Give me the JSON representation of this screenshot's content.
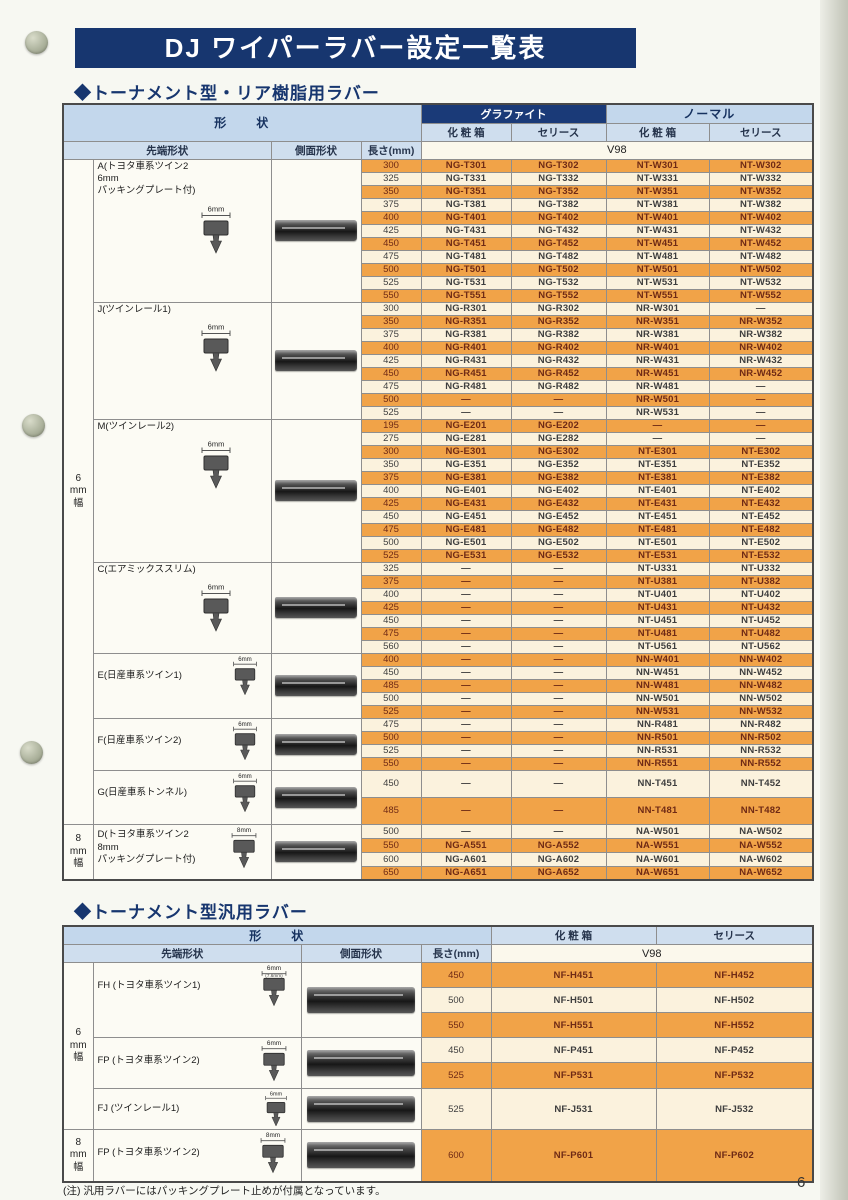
{
  "page": {
    "title": "DJ ワイパーラバー設定一覧表",
    "page_number": "6",
    "footnote": "(注) 汎用ラバーにはパッキングプレート止めが付属となっています。"
  },
  "colors": {
    "banner_navy": "#17366f",
    "header_light_blue": "#c3d7ec",
    "row_orange": "#f1a348",
    "row_cream": "#fbf2dd",
    "orange_row_text": "#6f2a15"
  },
  "table1": {
    "section_title": "◆トーナメント型・リア樹脂用ラバー",
    "headers": {
      "shape": "形　　状",
      "graphite": "グラファイト",
      "normal": "ノーマル",
      "box_g": "化 粧 箱",
      "cel_g": "セリース",
      "box_n": "化 粧 箱",
      "cel_n": "セリース",
      "tip": "先端形状",
      "side": "側面形状",
      "length": "長さ(mm)",
      "model": "V98"
    },
    "width_bands": [
      {
        "label": "6mm幅",
        "lines": [
          "6",
          "mm",
          "幅"
        ]
      },
      {
        "label": "8mm幅",
        "lines": [
          "8",
          "mm",
          "幅"
        ]
      }
    ],
    "groups": [
      {
        "id": "A",
        "band": 0,
        "tip_width": "6mm",
        "label_lines": [
          "A(トヨタ車系ツイン2",
          "6mm",
          "パッキングプレート付)"
        ],
        "rows": [
          {
            "cells": [
              "300",
              "NG-T301",
              "NG-T302",
              "NT-W301",
              "NT-W302"
            ]
          },
          {
            "cells": [
              "325",
              "NG-T331",
              "NG-T332",
              "NT-W331",
              "NT-W332"
            ]
          },
          {
            "cells": [
              "350",
              "NG-T351",
              "NG-T352",
              "NT-W351",
              "NT-W352"
            ]
          },
          {
            "cells": [
              "375",
              "NG-T381",
              "NG-T382",
              "NT-W381",
              "NT-W382"
            ]
          },
          {
            "cells": [
              "400",
              "NG-T401",
              "NG-T402",
              "NT-W401",
              "NT-W402"
            ]
          },
          {
            "cells": [
              "425",
              "NG-T431",
              "NG-T432",
              "NT-W431",
              "NT-W432"
            ]
          },
          {
            "cells": [
              "450",
              "NG-T451",
              "NG-T452",
              "NT-W451",
              "NT-W452"
            ]
          },
          {
            "cells": [
              "475",
              "NG-T481",
              "NG-T482",
              "NT-W481",
              "NT-W482"
            ]
          },
          {
            "cells": [
              "500",
              "NG-T501",
              "NG-T502",
              "NT-W501",
              "NT-W502"
            ]
          },
          {
            "cells": [
              "525",
              "NG-T531",
              "NG-T532",
              "NT-W531",
              "NT-W532"
            ]
          },
          {
            "cells": [
              "550",
              "NG-T551",
              "NG-T552",
              "NT-W551",
              "NT-W552"
            ]
          }
        ]
      },
      {
        "id": "J",
        "band": 0,
        "tip_width": "6mm",
        "label_lines": [
          "J(ツインレール1)"
        ],
        "rows": [
          {
            "cells": [
              "300",
              "NG-R301",
              "NG-R302",
              "NR-W301",
              "—"
            ]
          },
          {
            "cells": [
              "350",
              "NG-R351",
              "NG-R352",
              "NR-W351",
              "NR-W352"
            ]
          },
          {
            "cells": [
              "375",
              "NG-R381",
              "NG-R382",
              "NR-W381",
              "NR-W382"
            ]
          },
          {
            "cells": [
              "400",
              "NG-R401",
              "NG-R402",
              "NR-W401",
              "NR-W402"
            ]
          },
          {
            "cells": [
              "425",
              "NG-R431",
              "NG-R432",
              "NR-W431",
              "NR-W432"
            ]
          },
          {
            "cells": [
              "450",
              "NG-R451",
              "NG-R452",
              "NR-W451",
              "NR-W452"
            ]
          },
          {
            "cells": [
              "475",
              "NG-R481",
              "NG-R482",
              "NR-W481",
              "—"
            ]
          },
          {
            "cells": [
              "500",
              "—",
              "—",
              "NR-W501",
              "—"
            ]
          },
          {
            "cells": [
              "525",
              "—",
              "—",
              "NR-W531",
              "—"
            ]
          }
        ]
      },
      {
        "id": "M",
        "band": 0,
        "tip_width": "6mm",
        "label_lines": [
          "M(ツインレール2)"
        ],
        "rows": [
          {
            "cells": [
              "195",
              "NG-E201",
              "NG-E202",
              "—",
              "—"
            ]
          },
          {
            "cells": [
              "275",
              "NG-E281",
              "NG-E282",
              "—",
              "—"
            ]
          },
          {
            "cells": [
              "300",
              "NG-E301",
              "NG-E302",
              "NT-E301",
              "NT-E302"
            ]
          },
          {
            "cells": [
              "350",
              "NG-E351",
              "NG-E352",
              "NT-E351",
              "NT-E352"
            ]
          },
          {
            "cells": [
              "375",
              "NG-E381",
              "NG-E382",
              "NT-E381",
              "NT-E382"
            ]
          },
          {
            "cells": [
              "400",
              "NG-E401",
              "NG-E402",
              "NT-E401",
              "NT-E402"
            ]
          },
          {
            "cells": [
              "425",
              "NG-E431",
              "NG-E432",
              "NT-E431",
              "NT-E432"
            ]
          },
          {
            "cells": [
              "450",
              "NG-E451",
              "NG-E452",
              "NT-E451",
              "NT-E452"
            ]
          },
          {
            "cells": [
              "475",
              "NG-E481",
              "NG-E482",
              "NT-E481",
              "NT-E482"
            ]
          },
          {
            "cells": [
              "500",
              "NG-E501",
              "NG-E502",
              "NT-E501",
              "NT-E502"
            ]
          },
          {
            "cells": [
              "525",
              "NG-E531",
              "NG-E532",
              "NT-E531",
              "NT-E532"
            ]
          }
        ]
      },
      {
        "id": "C",
        "band": 0,
        "tip_width": "6mm",
        "label_lines": [
          "C(エアミックススリム)"
        ],
        "rows": [
          {
            "cells": [
              "325",
              "—",
              "—",
              "NT-U331",
              "NT-U332"
            ]
          },
          {
            "cells": [
              "375",
              "—",
              "—",
              "NT-U381",
              "NT-U382"
            ]
          },
          {
            "cells": [
              "400",
              "—",
              "—",
              "NT-U401",
              "NT-U402"
            ]
          },
          {
            "cells": [
              "425",
              "—",
              "—",
              "NT-U431",
              "NT-U432"
            ]
          },
          {
            "cells": [
              "450",
              "—",
              "—",
              "NT-U451",
              "NT-U452"
            ]
          },
          {
            "cells": [
              "475",
              "—",
              "—",
              "NT-U481",
              "NT-U482"
            ]
          },
          {
            "cells": [
              "560",
              "—",
              "—",
              "NT-U561",
              "NT-U562"
            ]
          }
        ]
      },
      {
        "id": "E",
        "band": 0,
        "tip_width": "6mm",
        "label_lines": [
          "E(日産車系ツイン1)"
        ],
        "rows": [
          {
            "cells": [
              "400",
              "—",
              "—",
              "NN-W401",
              "NN-W402"
            ]
          },
          {
            "cells": [
              "450",
              "—",
              "—",
              "NN-W451",
              "NN-W452"
            ]
          },
          {
            "cells": [
              "485",
              "—",
              "—",
              "NN-W481",
              "NN-W482"
            ]
          },
          {
            "cells": [
              "500",
              "—",
              "—",
              "NN-W501",
              "NN-W502"
            ]
          },
          {
            "cells": [
              "525",
              "—",
              "—",
              "NN-W531",
              "NN-W532"
            ]
          }
        ]
      },
      {
        "id": "F",
        "band": 0,
        "tip_width": "6mm",
        "label_lines": [
          "F(日産車系ツイン2)"
        ],
        "rows": [
          {
            "cells": [
              "475",
              "—",
              "—",
              "NN-R481",
              "NN-R482"
            ]
          },
          {
            "cells": [
              "500",
              "—",
              "—",
              "NN-R501",
              "NN-R502"
            ]
          },
          {
            "cells": [
              "525",
              "—",
              "—",
              "NN-R531",
              "NN-R532"
            ]
          },
          {
            "cells": [
              "550",
              "—",
              "—",
              "NN-R551",
              "NN-R552"
            ]
          }
        ]
      },
      {
        "id": "G",
        "band": 0,
        "tip_width": "6mm",
        "label_lines": [
          "G(日産車系トンネル)"
        ],
        "rows": [
          {
            "cells": [
              "450",
              "—",
              "—",
              "NN-T451",
              "NN-T452"
            ]
          },
          {
            "cells": [
              "485",
              "—",
              "—",
              "NN-T481",
              "NN-T482"
            ]
          }
        ]
      },
      {
        "id": "D",
        "band": 1,
        "tip_width": "8mm",
        "label_lines": [
          "D(トヨタ車系ツイン2",
          "8mm",
          "パッキングプレート付)"
        ],
        "rows": [
          {
            "cells": [
              "500",
              "—",
              "—",
              "NA-W501",
              "NA-W502"
            ]
          },
          {
            "cells": [
              "550",
              "NG-A551",
              "NG-A552",
              "NA-W551",
              "NA-W552"
            ]
          },
          {
            "cells": [
              "600",
              "NG-A601",
              "NG-A602",
              "NA-W601",
              "NA-W602"
            ]
          },
          {
            "cells": [
              "650",
              "NG-A651",
              "NG-A652",
              "NA-W651",
              "NA-W652"
            ]
          }
        ]
      }
    ]
  },
  "table2": {
    "section_title": "◆トーナメント型汎用ラバー",
    "headers": {
      "shape": "形　　状",
      "box": "化 粧 箱",
      "cel": "セリース",
      "tip": "先端形状",
      "side": "側面形状",
      "length": "長さ(mm)",
      "model": "V98"
    },
    "width_bands": [
      {
        "label": "6mm幅",
        "lines": [
          "6",
          "mm",
          "幅"
        ]
      },
      {
        "label": "8mm幅",
        "lines": [
          "8",
          "mm",
          "幅"
        ]
      }
    ],
    "groups": [
      {
        "id": "FH",
        "band": 0,
        "tip_width": "6mm",
        "tip_note": "(7.6mm)",
        "label_lines": [
          "FH (トヨタ車系ツイン1)"
        ],
        "rows": [
          {
            "cells": [
              "450",
              "NF-H451",
              "NF-H452"
            ]
          },
          {
            "cells": [
              "500",
              "NF-H501",
              "NF-H502"
            ]
          },
          {
            "cells": [
              "550",
              "NF-H551",
              "NF-H552"
            ]
          }
        ]
      },
      {
        "id": "FP6",
        "band": 0,
        "tip_width": "6mm",
        "label_lines": [
          "FP (トヨタ車系ツイン2)"
        ],
        "rows": [
          {
            "cells": [
              "450",
              "NF-P451",
              "NF-P452"
            ]
          },
          {
            "cells": [
              "525",
              "NF-P531",
              "NF-P532"
            ]
          }
        ]
      },
      {
        "id": "FJ",
        "band": 0,
        "tip_width": "6mm",
        "label_lines": [
          "FJ (ツインレール1)"
        ],
        "rows": [
          {
            "cells": [
              "525",
              "NF-J531",
              "NF-J532"
            ]
          }
        ]
      },
      {
        "id": "FP8",
        "band": 1,
        "tip_width": "8mm",
        "label_lines": [
          "FP (トヨタ車系ツイン2)"
        ],
        "rows": [
          {
            "cells": [
              "600",
              "NF-P601",
              "NF-P602"
            ]
          }
        ]
      }
    ]
  }
}
